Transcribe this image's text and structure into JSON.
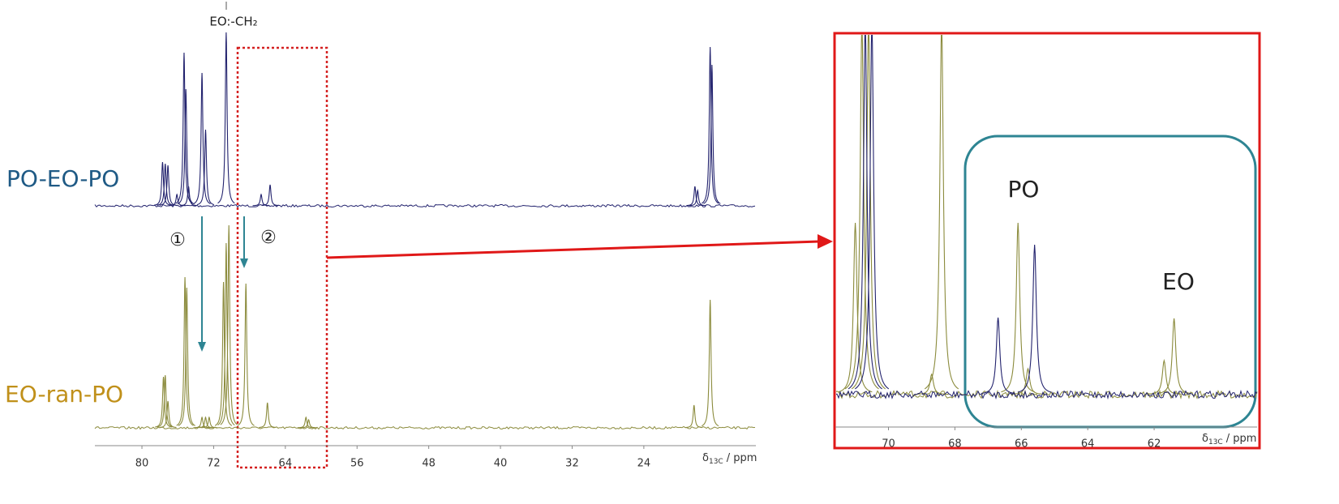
{
  "chart_data": [
    {
      "type": "spectrum",
      "xlim": [
        85.25,
        11.5
      ],
      "xticks": [
        80,
        72,
        64,
        56,
        48,
        40,
        32,
        24
      ],
      "x_label": {
        "symbol": "δ",
        "subscript": "13C",
        "unit": "/ ppm"
      },
      "ylim": [
        0,
        250
      ],
      "annotations": [
        "EO:-CH₂",
        "①",
        "②"
      ],
      "series": [
        {
          "name": "PO-EO-PO",
          "color": "#23236e",
          "label_color": "#1f5a85",
          "ppm": [
            77.7,
            77.4,
            77.1,
            76.1,
            75.3,
            75.1,
            74.8,
            73.3,
            72.9,
            70.6,
            66.7,
            65.7,
            18.3,
            18.0,
            16.6,
            16.4
          ],
          "values": [
            54,
            52,
            50,
            14,
            189,
            144,
            24,
            164,
            94,
            214,
            14,
            26,
            24,
            19,
            196,
            174
          ]
        },
        {
          "name": "EO-ran-PO",
          "color": "#8b8b3c",
          "label_color": "#c0901a",
          "ppm": [
            77.6,
            77.4,
            77.1,
            75.2,
            75.0,
            73.3,
            72.9,
            72.5,
            70.9,
            70.6,
            70.3,
            68.4,
            66.0,
            61.7,
            61.4,
            18.4,
            16.6
          ],
          "values": [
            63,
            65,
            33,
            186,
            173,
            13,
            13,
            13,
            180,
            228,
            250,
            178,
            31,
            13,
            10,
            28,
            158
          ]
        }
      ]
    },
    {
      "type": "spectrum",
      "xlim": [
        71.6,
        58.9
      ],
      "xticks": [
        70,
        68,
        66,
        64,
        62
      ],
      "x_label": {
        "symbol": "δ",
        "subscript": "13C",
        "unit": "/ ppm"
      },
      "ylim": [
        0,
        440
      ],
      "annotations": [
        "PO",
        "EO"
      ],
      "series": [
        {
          "color": "#8b8b3c",
          "ppm": [
            71.0,
            70.8,
            70.6,
            68.7,
            68.4,
            66.1,
            65.8,
            61.7,
            61.4
          ],
          "values": [
            212,
            460,
            460,
            25,
            460,
            212,
            32,
            42,
            94
          ]
        },
        {
          "color": "#23236e",
          "ppm": [
            70.7,
            70.5,
            66.7,
            65.6
          ],
          "values": [
            460,
            460,
            95,
            185
          ]
        }
      ]
    }
  ]
}
